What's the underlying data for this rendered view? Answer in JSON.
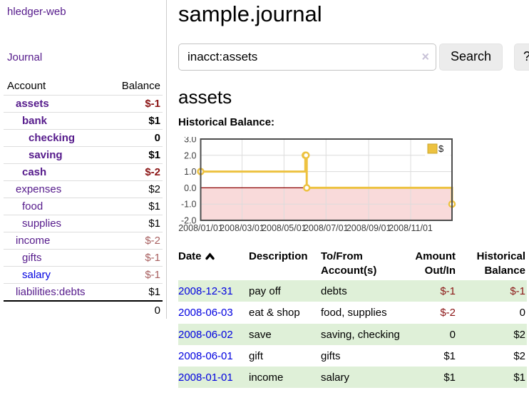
{
  "colors": {
    "link_purple": "#551a8b",
    "link_blue": "#0000e0",
    "negative_strong": "#8b1515",
    "negative_soft": "#a86060",
    "row_stripe_green": "#dff0d8",
    "chart_line_gold": "#edc240",
    "chart_negative_fill": "#f9dada",
    "chart_zero_line": "#8b0000"
  },
  "sidebar": {
    "brand": "hledger-web",
    "nav_journal": "Journal",
    "accounts": {
      "header_account": "Account",
      "header_balance": "Balance",
      "rows": [
        {
          "name": "assets",
          "balance": "$-1",
          "depth": 1,
          "bold": true,
          "balance_color": "neg-strong",
          "link": "visited"
        },
        {
          "name": "bank",
          "balance": "$1",
          "depth": 2,
          "bold": true,
          "balance_color": "pos",
          "link": "visited"
        },
        {
          "name": "checking",
          "balance": "0",
          "depth": 3,
          "bold": true,
          "balance_color": "pos",
          "link": "visited"
        },
        {
          "name": "saving",
          "balance": "$1",
          "depth": 3,
          "bold": true,
          "balance_color": "pos",
          "link": "visited"
        },
        {
          "name": "cash",
          "balance": "$-2",
          "depth": 2,
          "bold": true,
          "balance_color": "neg-strong",
          "link": "visited"
        },
        {
          "name": "expenses",
          "balance": "$2",
          "depth": 1,
          "bold": false,
          "balance_color": "pos",
          "link": "visited"
        },
        {
          "name": "food",
          "balance": "$1",
          "depth": 2,
          "bold": false,
          "balance_color": "pos",
          "link": "visited"
        },
        {
          "name": "supplies",
          "balance": "$1",
          "depth": 2,
          "bold": false,
          "balance_color": "pos",
          "link": "visited"
        },
        {
          "name": "income",
          "balance": "$-2",
          "depth": 1,
          "bold": false,
          "balance_color": "neg-soft",
          "link": "visited"
        },
        {
          "name": "gifts",
          "balance": "$-1",
          "depth": 2,
          "bold": false,
          "balance_color": "neg-soft",
          "link": "visited"
        },
        {
          "name": "salary",
          "balance": "$-1",
          "depth": 2,
          "bold": false,
          "balance_color": "neg-soft",
          "link": "unvisited"
        },
        {
          "name": "liabilities:debts",
          "balance": "$1",
          "depth": 1,
          "bold": false,
          "balance_color": "pos",
          "link": "visited"
        }
      ],
      "total": "0"
    }
  },
  "main": {
    "title": "sample.journal",
    "search": {
      "value": "inacct:assets",
      "clear_icon": "×",
      "search_button": "Search",
      "help_button": "?"
    },
    "account_heading": "assets",
    "chart_heading": "Historical Balance:"
  },
  "chart_data": {
    "type": "line",
    "steps": true,
    "title": "Historical Balance",
    "series_name": "$",
    "points": [
      {
        "date": "2008-01-01",
        "value": 1
      },
      {
        "date": "2008-06-01",
        "value": 2
      },
      {
        "date": "2008-06-02",
        "value": 2
      },
      {
        "date": "2008-06-03",
        "value": 0
      },
      {
        "date": "2008-12-31",
        "value": -1
      }
    ],
    "ylim": [
      -2,
      3
    ],
    "yticks": [
      "3.0",
      "2.0",
      "1.0",
      "0.0",
      "-1.0",
      "-2.0"
    ],
    "ytick_values": [
      3,
      2,
      1,
      0,
      -1,
      -2
    ],
    "xlim": [
      "2008-01-01",
      "2008-12-31"
    ],
    "xticks": [
      {
        "label": "2008/01/01",
        "date": "2008-01-01"
      },
      {
        "label": "2008/03/01",
        "date": "2008-03-01"
      },
      {
        "label": "2008/05/01",
        "date": "2008-05-01"
      },
      {
        "label": "2008/07/01",
        "date": "2008-07-01"
      },
      {
        "label": "2008/09/01",
        "date": "2008-09-01"
      },
      {
        "label": "2008/11/01",
        "date": "2008-11-01"
      }
    ],
    "legend": {
      "label": "$",
      "position": "top-right"
    },
    "grid": true,
    "negative_region_shaded": true
  },
  "register": {
    "headers": {
      "date": "Date",
      "description": "Description",
      "accounts": "To/From Account(s)",
      "amount": "Amount Out/In",
      "balance": "Historical Balance"
    },
    "rows": [
      {
        "date": "2008-12-31",
        "description": "pay off",
        "accounts": "debts",
        "amount": "$-1",
        "amount_negative": true,
        "balance": "$-1",
        "balance_negative": true
      },
      {
        "date": "2008-06-03",
        "description": "eat & shop",
        "accounts": "food, supplies",
        "amount": "$-2",
        "amount_negative": true,
        "balance": "0",
        "balance_negative": false
      },
      {
        "date": "2008-06-02",
        "description": "save",
        "accounts": "saving, checking",
        "amount": "0",
        "amount_negative": false,
        "balance": "$2",
        "balance_negative": false
      },
      {
        "date": "2008-06-01",
        "description": "gift",
        "accounts": "gifts",
        "amount": "$1",
        "amount_negative": false,
        "balance": "$2",
        "balance_negative": false
      },
      {
        "date": "2008-01-01",
        "description": "income",
        "accounts": "salary",
        "amount": "$1",
        "amount_negative": false,
        "balance": "$1",
        "balance_negative": false
      }
    ]
  }
}
